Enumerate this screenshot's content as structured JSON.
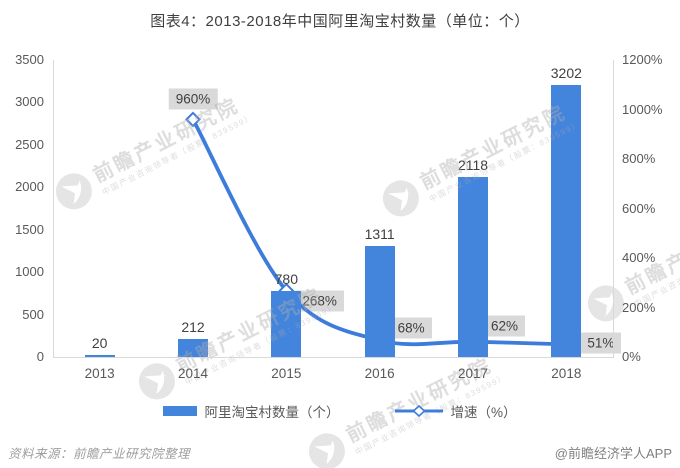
{
  "title": "图表4：2013-2018年中国阿里淘宝村数量（单位：个）",
  "footer": {
    "source": "资料来源：前瞻产业研究院整理",
    "credit": "@前瞻经济学人APP"
  },
  "watermark": {
    "main": "前瞻产业研究院",
    "sub": "中国产业咨询领导者（股票：839599）"
  },
  "colors": {
    "bar": "#4384dc",
    "line": "#3d7cdb",
    "marker_fill": "#ffffff",
    "label_box_bg": "#d9d9d9",
    "label_text": "#404040",
    "axis_text": "#595959",
    "axis_line": "#d9d9d9"
  },
  "chart_data": {
    "type": "bar",
    "title": "图表4：2013-2018年中国阿里淘宝村数量（单位：个）",
    "categories": [
      "2013",
      "2014",
      "2015",
      "2016",
      "2017",
      "2018"
    ],
    "series": [
      {
        "name": "阿里淘宝村数量（个）",
        "type": "bar",
        "axis": "left",
        "values": [
          20,
          212,
          780,
          1311,
          2118,
          3202
        ],
        "labels": [
          "20",
          "212",
          "780",
          "1311",
          "2118",
          "3202"
        ]
      },
      {
        "name": "增速（%）",
        "type": "line",
        "axis": "right",
        "values": [
          null,
          960,
          268,
          68,
          62,
          51
        ],
        "labels": [
          null,
          "960%",
          "268%",
          "68%",
          "62%",
          "51%"
        ]
      }
    ],
    "left_axis": {
      "min": 0,
      "max": 3500,
      "step": 500,
      "tick_labels": [
        "3500",
        "3000",
        "2500",
        "2000",
        "1500",
        "1000",
        "500",
        "0"
      ]
    },
    "right_axis": {
      "min": 0,
      "max": 1200,
      "step": 200,
      "tick_labels": [
        "1200%",
        "1000%",
        "800%",
        "600%",
        "400%",
        "200%",
        "0%"
      ]
    },
    "grid": false,
    "legend_position": "bottom"
  }
}
